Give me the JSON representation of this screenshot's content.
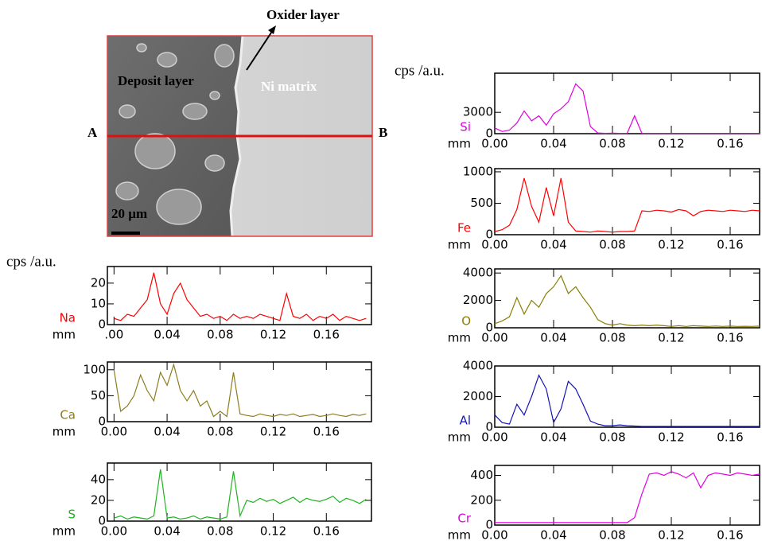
{
  "image": {
    "labels": {
      "oxide": "Oxider layer",
      "deposit": "Deposit layer",
      "matrix": "Ni matrix",
      "start": "A",
      "end": "B",
      "scale": "20 µm"
    }
  },
  "ylabel_left": "cps /a.u.",
  "ylabel_right": "cps /a.u.",
  "chart_data": [
    {
      "type": "line",
      "label": "Na",
      "xlabel": "mm",
      "color": "#ff0000",
      "x": [
        0,
        0.005,
        0.01,
        0.015,
        0.02,
        0.025,
        0.03,
        0.035,
        0.04,
        0.045,
        0.05,
        0.055,
        0.06,
        0.065,
        0.07,
        0.075,
        0.08,
        0.085,
        0.09,
        0.095,
        0.1,
        0.105,
        0.11,
        0.115,
        0.12,
        0.125,
        0.13,
        0.135,
        0.14,
        0.145,
        0.15,
        0.155,
        0.16,
        0.165,
        0.17,
        0.175,
        0.18,
        0.185,
        0.19
      ],
      "values": [
        3,
        2,
        5,
        4,
        8,
        12,
        25,
        10,
        5,
        15,
        20,
        12,
        8,
        4,
        5,
        3,
        4,
        2,
        5,
        3,
        4,
        3,
        5,
        4,
        3,
        2,
        15,
        4,
        3,
        5,
        2,
        4,
        3,
        5,
        2,
        4,
        3,
        2,
        3
      ],
      "xlim": [
        -0.005,
        0.194
      ],
      "ylim": [
        0,
        28
      ],
      "yticks": [
        0,
        10,
        20
      ],
      "xticks": [
        {
          "value": 0,
          "label": ".00"
        },
        0.04,
        0.08,
        0.12,
        0.16
      ]
    },
    {
      "type": "line",
      "label": "Ca",
      "xlabel": "mm",
      "color": "#8c7d1e",
      "x": [
        0,
        0.005,
        0.01,
        0.015,
        0.02,
        0.025,
        0.03,
        0.035,
        0.04,
        0.045,
        0.05,
        0.055,
        0.06,
        0.065,
        0.07,
        0.075,
        0.08,
        0.085,
        0.09,
        0.095,
        0.1,
        0.105,
        0.11,
        0.115,
        0.12,
        0.125,
        0.13,
        0.135,
        0.14,
        0.145,
        0.15,
        0.155,
        0.16,
        0.165,
        0.17,
        0.175,
        0.18,
        0.185,
        0.19
      ],
      "values": [
        100,
        20,
        30,
        50,
        90,
        60,
        40,
        95,
        70,
        110,
        60,
        40,
        60,
        30,
        40,
        10,
        20,
        10,
        95,
        15,
        12,
        10,
        15,
        12,
        10,
        14,
        12,
        15,
        10,
        12,
        14,
        10,
        12,
        15,
        12,
        10,
        14,
        12,
        15
      ],
      "xlim": [
        -0.005,
        0.194
      ],
      "ylim": [
        0,
        115
      ],
      "yticks": [
        0,
        50,
        100
      ],
      "xticks": [
        {
          "value": 0,
          "label": "0.00"
        },
        0.04,
        0.08,
        0.12,
        0.16
      ]
    },
    {
      "type": "line",
      "label": "S",
      "xlabel": "mm",
      "color": "#1eb41e",
      "x": [
        0,
        0.005,
        0.01,
        0.015,
        0.02,
        0.025,
        0.03,
        0.035,
        0.04,
        0.045,
        0.05,
        0.055,
        0.06,
        0.065,
        0.07,
        0.075,
        0.08,
        0.085,
        0.09,
        0.095,
        0.1,
        0.105,
        0.11,
        0.115,
        0.12,
        0.125,
        0.13,
        0.135,
        0.14,
        0.145,
        0.15,
        0.155,
        0.16,
        0.165,
        0.17,
        0.175,
        0.18,
        0.185,
        0.19
      ],
      "values": [
        3,
        5,
        2,
        4,
        3,
        2,
        5,
        50,
        3,
        4,
        2,
        3,
        5,
        2,
        4,
        3,
        2,
        4,
        48,
        5,
        20,
        18,
        22,
        19,
        21,
        17,
        20,
        23,
        18,
        22,
        20,
        19,
        21,
        24,
        18,
        22,
        20,
        17,
        21
      ],
      "xlim": [
        -0.005,
        0.194
      ],
      "ylim": [
        0,
        56
      ],
      "yticks": [
        0,
        20,
        40
      ],
      "xticks": [
        {
          "value": 0,
          "label": "0.00"
        },
        0.04,
        0.08,
        0.12,
        0.16
      ]
    },
    {
      "type": "line",
      "label": "Si",
      "xlabel": "mm",
      "color": "#e000e0",
      "x": [
        0,
        0.005,
        0.01,
        0.015,
        0.02,
        0.025,
        0.03,
        0.035,
        0.04,
        0.045,
        0.05,
        0.055,
        0.06,
        0.065,
        0.07,
        0.075,
        0.08,
        0.085,
        0.09,
        0.095,
        0.1,
        0.105,
        0.11,
        0.115,
        0.12,
        0.125,
        0.13,
        0.135,
        0.14,
        0.145,
        0.15,
        0.155,
        0.16,
        0.165,
        0.17,
        0.175,
        0.18
      ],
      "values": [
        800,
        300,
        500,
        1500,
        3200,
        1800,
        2500,
        1200,
        2800,
        3500,
        4500,
        7000,
        6000,
        1000,
        100,
        50,
        80,
        50,
        60,
        2500,
        50,
        50,
        50,
        50,
        50,
        50,
        50,
        50,
        50,
        50,
        50,
        50,
        50,
        50,
        50,
        50,
        50
      ],
      "xlim": [
        0,
        0.18
      ],
      "ylim": [
        0,
        8500
      ],
      "yticks": [
        0,
        3000
      ],
      "xticks": [
        {
          "value": 0,
          "label": "0.00"
        },
        0.04,
        0.08,
        0.12,
        0.16
      ]
    },
    {
      "type": "line",
      "label": "Fe",
      "xlabel": "mm",
      "color": "#ff0000",
      "x": [
        0,
        0.005,
        0.01,
        0.015,
        0.02,
        0.025,
        0.03,
        0.035,
        0.04,
        0.045,
        0.05,
        0.055,
        0.06,
        0.065,
        0.07,
        0.075,
        0.08,
        0.085,
        0.09,
        0.095,
        0.1,
        0.105,
        0.11,
        0.115,
        0.12,
        0.125,
        0.13,
        0.135,
        0.14,
        0.145,
        0.15,
        0.155,
        0.16,
        0.165,
        0.17,
        0.175,
        0.18
      ],
      "values": [
        50,
        80,
        150,
        400,
        900,
        450,
        200,
        750,
        300,
        900,
        200,
        60,
        50,
        40,
        60,
        50,
        40,
        50,
        50,
        60,
        380,
        370,
        390,
        380,
        360,
        400,
        380,
        300,
        370,
        390,
        380,
        370,
        390,
        380,
        370,
        390,
        380
      ],
      "xlim": [
        0,
        0.18
      ],
      "ylim": [
        0,
        1050
      ],
      "yticks": [
        0,
        500,
        1000
      ],
      "xticks": [
        {
          "value": 0,
          "label": "0.00"
        },
        0.04,
        0.08,
        0.12,
        0.16
      ]
    },
    {
      "type": "line",
      "label": "O",
      "xlabel": "mm",
      "color": "#8b7d00",
      "x": [
        0,
        0.005,
        0.01,
        0.015,
        0.02,
        0.025,
        0.03,
        0.035,
        0.04,
        0.045,
        0.05,
        0.055,
        0.06,
        0.065,
        0.07,
        0.075,
        0.08,
        0.085,
        0.09,
        0.095,
        0.1,
        0.105,
        0.11,
        0.115,
        0.12,
        0.125,
        0.13,
        0.135,
        0.14,
        0.145,
        0.15,
        0.155,
        0.16,
        0.165,
        0.17,
        0.175,
        0.18
      ],
      "values": [
        300,
        500,
        800,
        2200,
        1000,
        2000,
        1500,
        2500,
        3000,
        3800,
        2500,
        3000,
        2200,
        1500,
        600,
        300,
        200,
        300,
        200,
        150,
        200,
        150,
        200,
        150,
        100,
        150,
        100,
        150,
        120,
        100,
        130,
        100,
        120,
        100,
        110,
        100,
        120
      ],
      "xlim": [
        0,
        0.18
      ],
      "ylim": [
        0,
        4300
      ],
      "yticks": [
        0,
        2000,
        4000
      ],
      "xticks": [
        {
          "value": 0,
          "label": "0.00"
        },
        0.04,
        0.08,
        0.12,
        0.16
      ]
    },
    {
      "type": "line",
      "label": "Al",
      "xlabel": "mm",
      "color": "#1414b4",
      "x": [
        0,
        0.005,
        0.01,
        0.015,
        0.02,
        0.025,
        0.03,
        0.035,
        0.04,
        0.045,
        0.05,
        0.055,
        0.06,
        0.065,
        0.07,
        0.075,
        0.08,
        0.085,
        0.09,
        0.095,
        0.1,
        0.105,
        0.11,
        0.115,
        0.12,
        0.125,
        0.13,
        0.135,
        0.14,
        0.145,
        0.15,
        0.155,
        0.16,
        0.165,
        0.17,
        0.175,
        0.18
      ],
      "values": [
        800,
        300,
        200,
        1500,
        800,
        2000,
        3400,
        2500,
        300,
        1200,
        3000,
        2500,
        1500,
        400,
        200,
        100,
        100,
        150,
        100,
        80,
        50,
        50,
        50,
        50,
        50,
        50,
        50,
        50,
        50,
        50,
        50,
        50,
        50,
        50,
        50,
        50,
        50
      ],
      "xlim": [
        0,
        0.18
      ],
      "ylim": [
        0,
        4000
      ],
      "yticks": [
        0,
        2000,
        4000
      ],
      "xticks": [
        {
          "value": 0,
          "label": "0.00"
        },
        0.04,
        0.08,
        0.12,
        0.16
      ]
    },
    {
      "type": "line",
      "label": "Cr",
      "xlabel": "mm",
      "color": "#e000e0",
      "x": [
        0,
        0.005,
        0.01,
        0.015,
        0.02,
        0.025,
        0.03,
        0.035,
        0.04,
        0.045,
        0.05,
        0.055,
        0.06,
        0.065,
        0.07,
        0.075,
        0.08,
        0.085,
        0.09,
        0.095,
        0.1,
        0.105,
        0.11,
        0.115,
        0.12,
        0.125,
        0.13,
        0.135,
        0.14,
        0.145,
        0.15,
        0.155,
        0.16,
        0.165,
        0.17,
        0.175,
        0.18
      ],
      "values": [
        20,
        20,
        20,
        20,
        20,
        20,
        20,
        20,
        20,
        20,
        20,
        20,
        20,
        20,
        20,
        20,
        20,
        20,
        20,
        60,
        250,
        410,
        420,
        400,
        430,
        410,
        380,
        420,
        300,
        400,
        420,
        410,
        400,
        420,
        410,
        400,
        410
      ],
      "xlim": [
        0,
        0.18
      ],
      "ylim": [
        0,
        480
      ],
      "yticks": [
        0,
        200,
        400
      ],
      "xticks": [
        {
          "value": 0,
          "label": "0.00"
        },
        0.04,
        0.08,
        0.12,
        0.16
      ]
    }
  ]
}
